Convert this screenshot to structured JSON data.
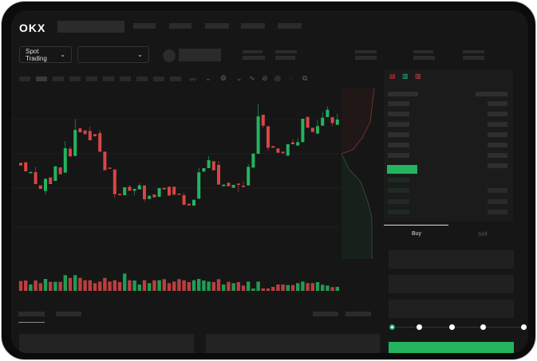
{
  "header": {
    "logo": "OKX"
  },
  "toolbar": {
    "market_label": "Spot Trading",
    "market_icon": "chevron-down-icon",
    "pair_icon": "chevron-down-icon"
  },
  "trade": {
    "tabs": [
      {
        "label": "Buy",
        "active": true
      },
      {
        "label": "Sell",
        "active": false
      }
    ],
    "leverage_steps": 5,
    "leverage_selected": 0
  },
  "colors": {
    "up": "#22b45f",
    "down": "#d94545",
    "background": "#161616"
  },
  "chart_data": {
    "type": "candlestick",
    "candles": [
      [
        750,
        740,
        750,
        740
      ],
      [
        752,
        718,
        752,
        718
      ],
      [
        711,
        716,
        716,
        711
      ],
      [
        715,
        670,
        735,
        670
      ],
      [
        665,
        652,
        665,
        652
      ],
      [
        644,
        690,
        690,
        630
      ],
      [
        695,
        670,
        695,
        670
      ],
      [
        682,
        737,
        737,
        682
      ],
      [
        733,
        707,
        733,
        707
      ],
      [
        713,
        805,
        832,
        713
      ],
      [
        803,
        774,
        812,
        774
      ],
      [
        776,
        874,
        915,
        776
      ],
      [
        880,
        865,
        880,
        865
      ],
      [
        872,
        858,
        872,
        858
      ],
      [
        870,
        835,
        887,
        835
      ],
      [
        858,
        850,
        858,
        850
      ],
      [
        862,
        792,
        872,
        792
      ],
      [
        792,
        722,
        792,
        722
      ],
      [
        732,
        728,
        732,
        728
      ],
      [
        725,
        632,
        725,
        618
      ],
      [
        633,
        628,
        633,
        628
      ],
      [
        628,
        658,
        658,
        628
      ],
      [
        660,
        645,
        667,
        645
      ],
      [
        645,
        652,
        652,
        628
      ],
      [
        650,
        665,
        673,
        650
      ],
      [
        665,
        613,
        665,
        603
      ],
      [
        614,
        626,
        626,
        614
      ],
      [
        631,
        620,
        631,
        620
      ],
      [
        622,
        655,
        655,
        622
      ],
      [
        656,
        650,
        656,
        650
      ],
      [
        660,
        627,
        660,
        627
      ],
      [
        660,
        630,
        660,
        630
      ],
      [
        634,
        630,
        634,
        630
      ],
      [
        628,
        592,
        638,
        592
      ],
      [
        596,
        590,
        596,
        590
      ],
      [
        589,
        611,
        611,
        589
      ],
      [
        615,
        714,
        730,
        615
      ],
      [
        717,
        730,
        730,
        717
      ],
      [
        730,
        760,
        775,
        730
      ],
      [
        756,
        722,
        756,
        722
      ],
      [
        742,
        668,
        757,
        668
      ],
      [
        662,
        668,
        668,
        662
      ],
      [
        675,
        662,
        675,
        662
      ],
      [
        656,
        667,
        667,
        656
      ],
      [
        672,
        667,
        672,
        640
      ],
      [
        664,
        659,
        682,
        659
      ],
      [
        665,
        735,
        745,
        665
      ],
      [
        732,
        785,
        785,
        732
      ],
      [
        784,
        925,
        973,
        784
      ],
      [
        931,
        890,
        931,
        882
      ],
      [
        888,
        807,
        888,
        795
      ],
      [
        813,
        807,
        813,
        807
      ],
      [
        804,
        788,
        804,
        788
      ],
      [
        792,
        786,
        792,
        786
      ],
      [
        777,
        820,
        820,
        777
      ],
      [
        827,
        820,
        838,
        820
      ],
      [
        815,
        828,
        843,
        815
      ],
      [
        828,
        916,
        916,
        828
      ],
      [
        923,
        882,
        923,
        882
      ],
      [
        882,
        866,
        882,
        866
      ],
      [
        860,
        888,
        910,
        860
      ],
      [
        890,
        920,
        942,
        890
      ],
      [
        922,
        950,
        963,
        922
      ],
      [
        922,
        900,
        922,
        888
      ],
      [
        893,
        913,
        934,
        893
      ]
    ],
    "volume": [
      37,
      39,
      24,
      39,
      29,
      45,
      34,
      34,
      34,
      59,
      49,
      59,
      49,
      40,
      40,
      29,
      35,
      49,
      35,
      40,
      33,
      65,
      40,
      39,
      24,
      40,
      29,
      40,
      40,
      44,
      29,
      35,
      44,
      40,
      33,
      40,
      45,
      39,
      35,
      33,
      44,
      24,
      34,
      29,
      33,
      20,
      35,
      9,
      35,
      9,
      9,
      15,
      24,
      24,
      22,
      22,
      29,
      35,
      29,
      29,
      33,
      23,
      20,
      14,
      15
    ]
  }
}
